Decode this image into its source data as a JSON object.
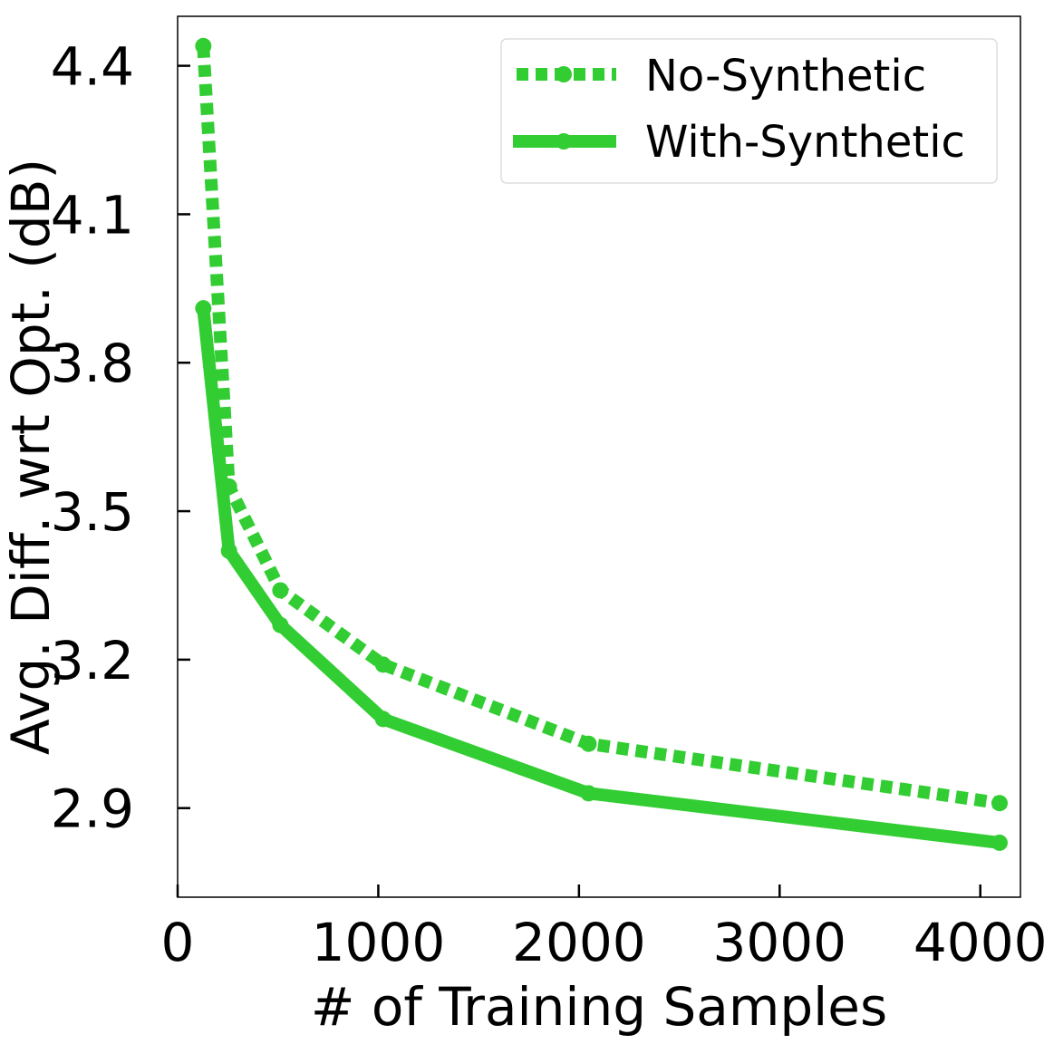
{
  "chart_data": {
    "type": "line",
    "title": "",
    "xlabel": "# of Training Samples",
    "ylabel": "Avg. Diff. wrt Opt. (dB)",
    "xlim": [
      0,
      4200
    ],
    "ylim": [
      2.72,
      4.5
    ],
    "xticks": [
      0,
      1000,
      2000,
      3000,
      4000
    ],
    "xtick_labels": [
      "0",
      "1000",
      "2000",
      "3000",
      "4000"
    ],
    "yticks": [
      2.9,
      3.2,
      3.5,
      3.8,
      4.1,
      4.4
    ],
    "ytick_labels": [
      "2.9",
      "3.2",
      "3.5",
      "3.8",
      "4.1",
      "4.4"
    ],
    "grid": false,
    "legend_position": "top-right",
    "series": [
      {
        "name": "No-Synthetic",
        "style": "dotted",
        "color": "#32cd32",
        "x": [
          128,
          256,
          512,
          1024,
          2048,
          4096
        ],
        "y": [
          4.44,
          3.55,
          3.34,
          3.19,
          3.03,
          2.91
        ]
      },
      {
        "name": "With-Synthetic",
        "style": "solid",
        "color": "#32cd32",
        "x": [
          128,
          256,
          512,
          1024,
          2048,
          4096
        ],
        "y": [
          3.91,
          3.42,
          3.27,
          3.08,
          2.93,
          2.83
        ]
      }
    ]
  }
}
